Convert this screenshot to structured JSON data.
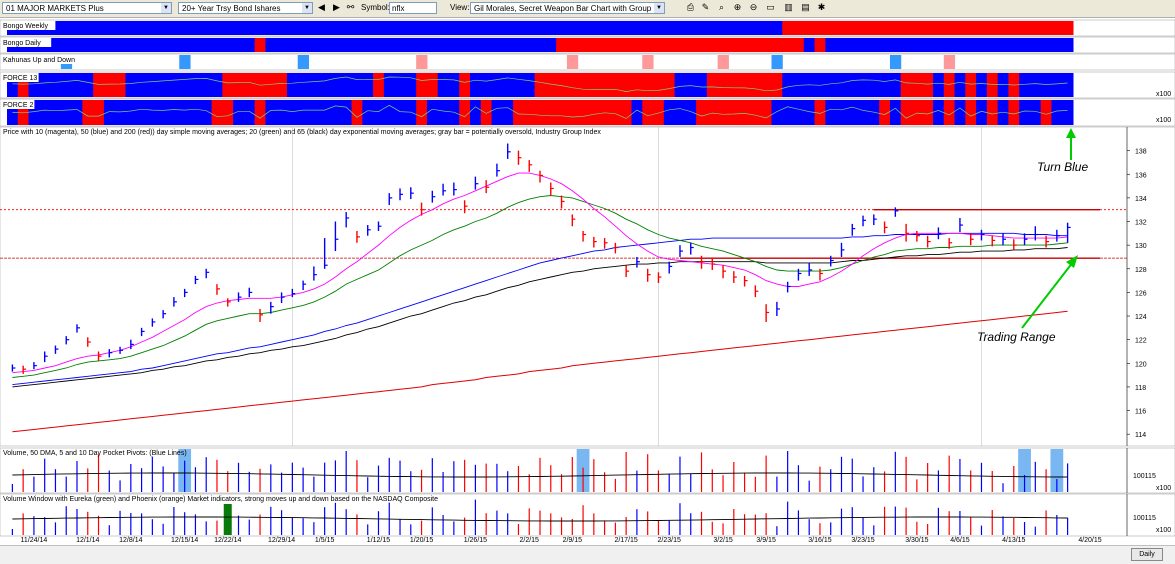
{
  "toolbar": {
    "list_value": "01 MAJOR MARKETS Plus",
    "watch_value": "20+ Year Trsy Bond Ishares",
    "symbol_label": "Symbol:",
    "symbol_value": "nflx",
    "view_label": "View:",
    "view_value": "Gil Morales, Secret Weapon Bar Chart with Group Index",
    "icons": [
      "prev-icon",
      "next-icon",
      "binoculars-icon",
      "print-icon",
      "edit-icon",
      "zoom-icon",
      "zoom-in-icon",
      "zoom-out-icon",
      "pages-icon",
      "chart-icon",
      "export-icon"
    ]
  },
  "panes": {
    "bongo_weekly": "Bongo Weekly",
    "bongo_daily": "Bongo Daily",
    "kahunas": "Kahunas Up and Down",
    "force13": "FORCE 13",
    "force2": "FORCE 2",
    "price": "Price with 10 (magenta), 50 (blue) and 200 (red)) day simple moving averages; 20 (green) and 65 (black) day exponential moving averages; gray bar = potentially oversold, Industry Group Index",
    "volume": "Volume, 50 DMA, 5 and 10 Day Pocket Pivots: (Blue Lines)",
    "volume_window": "Volume Window with Eureka (green) and Phoenix (orange) Market indicators, strong moves up and down based on the NASDAQ Composite",
    "x100": "x100",
    "vol_tick": "100115",
    "daily": "Daily"
  },
  "annotations": {
    "turn_blue": "Turn Blue",
    "trading_range": "Trading Range"
  },
  "colors": {
    "blue": "#0000ff",
    "red": "#ff0000",
    "pink": "#ff9999",
    "light_blue": "#3399ff",
    "magenta": "#ff00ff",
    "green": "#008000",
    "sma200": "#e00000",
    "arrow": "#00cc00"
  },
  "chart_data": {
    "type": "bar",
    "ylim": [
      113,
      140
    ],
    "yticks": [
      114,
      116,
      118,
      120,
      122,
      124,
      126,
      128,
      130,
      132,
      134,
      136,
      138
    ],
    "xtick_labels": [
      "11/24/14",
      "12/1/14",
      "12/8/14",
      "12/15/14",
      "12/22/14",
      "12/29/14",
      "1/5/15",
      "1/12/15",
      "1/20/15",
      "1/26/15",
      "2/2/15",
      "2/9/15",
      "2/17/15",
      "2/23/15",
      "3/2/15",
      "3/9/15",
      "3/16/15",
      "3/23/15",
      "3/30/15",
      "4/6/15",
      "4/13/15",
      "4/20/15"
    ],
    "close": [
      119.6,
      119.5,
      119.8,
      120.6,
      121.2,
      122.0,
      123.0,
      121.8,
      120.6,
      120.9,
      121.1,
      121.6,
      122.7,
      123.5,
      124.2,
      125.2,
      126.0,
      127.1,
      127.7,
      126.3,
      125.2,
      125.6,
      126.0,
      124.1,
      124.8,
      125.6,
      125.9,
      126.7,
      127.5,
      128.3,
      130.5,
      132.3,
      130.7,
      131.3,
      131.6,
      134.0,
      134.3,
      134.4,
      133.0,
      134.1,
      134.6,
      134.7,
      133.3,
      135.2,
      134.9,
      136.3,
      137.9,
      137.4,
      136.8,
      135.9,
      134.8,
      133.7,
      132.2,
      130.9,
      130.3,
      130.2,
      129.8,
      127.8,
      128.6,
      127.5,
      127.3,
      128.2,
      129.5,
      129.8,
      128.6,
      128.4,
      127.8,
      127.3,
      127.0,
      126.1,
      124.3,
      124.6,
      126.5,
      127.6,
      127.9,
      127.6,
      128.7,
      129.6,
      131.4,
      132.1,
      132.2,
      131.5,
      132.9,
      131.0,
      130.8,
      130.3,
      131.0,
      130.2,
      131.7,
      130.5,
      130.9,
      130.4,
      130.5,
      130.0,
      130.5,
      130.9,
      130.3,
      130.8,
      131.5
    ],
    "high": [
      119.9,
      119.8,
      120.1,
      121.0,
      121.5,
      122.3,
      123.3,
      122.2,
      121.0,
      121.2,
      121.4,
      122.0,
      123.0,
      123.8,
      124.5,
      125.6,
      126.3,
      127.4,
      128.0,
      126.7,
      125.5,
      126.0,
      126.4,
      124.6,
      125.2,
      126.0,
      126.3,
      127.0,
      128.2,
      130.6,
      132.0,
      132.8,
      131.2,
      131.7,
      132.0,
      134.4,
      134.8,
      134.9,
      133.6,
      134.6,
      135.2,
      135.3,
      133.8,
      135.8,
      135.5,
      136.9,
      138.6,
      138.0,
      137.2,
      136.3,
      135.3,
      134.2,
      132.6,
      131.2,
      130.7,
      130.6,
      130.2,
      128.3,
      129.0,
      128.0,
      127.7,
      128.6,
      130.0,
      130.2,
      129.1,
      128.9,
      128.3,
      127.8,
      127.4,
      126.6,
      125.0,
      125.2,
      126.9,
      128.0,
      128.5,
      128.0,
      129.1,
      130.2,
      131.8,
      132.5,
      132.6,
      132.0,
      133.2,
      131.8,
      131.2,
      130.8,
      131.5,
      130.6,
      132.3,
      131.0,
      131.3,
      130.8,
      131.0,
      130.5,
      131.0,
      131.6,
      130.8,
      131.3,
      131.9
    ],
    "low": [
      119.3,
      119.1,
      119.5,
      120.1,
      120.8,
      121.6,
      122.6,
      121.4,
      120.2,
      120.5,
      120.8,
      121.2,
      122.3,
      123.1,
      123.8,
      124.8,
      125.6,
      126.7,
      127.2,
      125.8,
      124.8,
      125.2,
      125.6,
      123.5,
      124.2,
      125.1,
      125.6,
      126.2,
      127.0,
      128.0,
      129.5,
      131.5,
      130.2,
      130.8,
      131.2,
      133.4,
      133.8,
      133.9,
      132.5,
      133.6,
      134.2,
      134.2,
      132.7,
      134.7,
      134.4,
      135.8,
      137.3,
      136.8,
      136.2,
      135.3,
      134.2,
      133.1,
      131.6,
      130.3,
      129.8,
      129.7,
      129.3,
      127.3,
      128.1,
      126.9,
      126.8,
      127.6,
      129.0,
      129.2,
      128.0,
      127.9,
      127.2,
      126.8,
      126.5,
      125.6,
      123.5,
      124.0,
      126.0,
      127.0,
      127.4,
      127.0,
      128.2,
      129.0,
      130.8,
      131.6,
      131.7,
      131.0,
      132.4,
      130.3,
      130.3,
      129.8,
      130.5,
      129.7,
      131.1,
      130.0,
      130.4,
      129.9,
      130.0,
      129.6,
      130.0,
      130.4,
      129.8,
      130.3,
      130.2
    ],
    "sma10": [
      119.2,
      119.3,
      119.4,
      119.6,
      119.8,
      120.1,
      120.4,
      120.6,
      120.7,
      120.9,
      121.1,
      121.4,
      121.8,
      122.2,
      122.7,
      123.2,
      123.7,
      124.3,
      124.8,
      125.1,
      125.3,
      125.4,
      125.5,
      125.5,
      125.5,
      125.6,
      125.8,
      126.0,
      126.3,
      126.7,
      127.3,
      128.0,
      128.6,
      129.3,
      130.0,
      130.8,
      131.5,
      132.1,
      132.6,
      133.0,
      133.5,
      133.9,
      134.2,
      134.6,
      135.0,
      135.4,
      135.8,
      136.1,
      136.1,
      135.9,
      135.6,
      135.2,
      134.6,
      133.9,
      133.1,
      132.4,
      131.6,
      130.8,
      130.1,
      129.5,
      129.0,
      128.8,
      128.7,
      128.6,
      128.5,
      128.4,
      128.3,
      128.1,
      127.9,
      127.5,
      127.0,
      126.7,
      126.5,
      126.5,
      126.7,
      126.9,
      127.3,
      127.8,
      128.4,
      129.1,
      129.7,
      130.2,
      130.6,
      130.9,
      131.0,
      131.0,
      131.0,
      131.0,
      131.0,
      130.9,
      130.9,
      130.8,
      130.7,
      130.6,
      130.6,
      130.6,
      130.6,
      130.6,
      130.7
    ],
    "ema20": [
      118.8,
      118.9,
      119.0,
      119.2,
      119.4,
      119.6,
      119.9,
      120.1,
      120.2,
      120.3,
      120.4,
      120.6,
      120.9,
      121.2,
      121.5,
      121.9,
      122.3,
      122.8,
      123.3,
      123.6,
      123.8,
      124.0,
      124.2,
      124.2,
      124.3,
      124.5,
      124.7,
      124.9,
      125.2,
      125.6,
      126.1,
      126.7,
      127.1,
      127.5,
      127.9,
      128.5,
      129.1,
      129.6,
      130.0,
      130.4,
      130.9,
      131.3,
      131.6,
      132.0,
      132.3,
      132.7,
      133.2,
      133.6,
      133.9,
      134.1,
      134.2,
      134.1,
      134.0,
      133.7,
      133.4,
      133.1,
      132.7,
      132.2,
      131.8,
      131.3,
      130.9,
      130.6,
      130.4,
      130.2,
      129.9,
      129.7,
      129.5,
      129.2,
      128.9,
      128.6,
      128.2,
      127.9,
      127.8,
      127.8,
      127.8,
      127.8,
      127.9,
      128.1,
      128.4,
      128.7,
      129.0,
      129.2,
      129.5,
      129.6,
      129.7,
      129.7,
      129.8,
      129.8,
      129.9,
      129.9,
      129.9,
      130.0,
      130.0,
      130.0,
      130.0,
      130.0,
      130.0,
      130.1,
      130.2
    ],
    "sma50": [
      118.2,
      118.3,
      118.4,
      118.5,
      118.6,
      118.7,
      118.8,
      118.9,
      119.0,
      119.1,
      119.2,
      119.3,
      119.5,
      119.6,
      119.8,
      120.0,
      120.2,
      120.4,
      120.6,
      120.8,
      120.9,
      121.1,
      121.3,
      121.4,
      121.6,
      121.8,
      122.0,
      122.2,
      122.4,
      122.7,
      122.9,
      123.2,
      123.4,
      123.7,
      124.0,
      124.3,
      124.6,
      124.9,
      125.2,
      125.5,
      125.8,
      126.1,
      126.4,
      126.7,
      127.0,
      127.3,
      127.6,
      127.9,
      128.2,
      128.5,
      128.7,
      128.9,
      129.1,
      129.3,
      129.5,
      129.6,
      129.8,
      129.9,
      130.0,
      130.1,
      130.2,
      130.3,
      130.4,
      130.5,
      130.5,
      130.6,
      130.6,
      130.6,
      130.6,
      130.6,
      130.6,
      130.6,
      130.6,
      130.6,
      130.6,
      130.6,
      130.6,
      130.6,
      130.7,
      130.7,
      130.8,
      130.8,
      130.9,
      130.9,
      130.9,
      130.9,
      130.9,
      131.0,
      131.0,
      131.0,
      131.0,
      131.0,
      131.0,
      131.0,
      130.9,
      130.9,
      130.9,
      130.8,
      130.8
    ],
    "ema65": [
      118.0,
      118.1,
      118.2,
      118.3,
      118.4,
      118.5,
      118.6,
      118.7,
      118.8,
      118.9,
      119.0,
      119.1,
      119.2,
      119.4,
      119.5,
      119.7,
      119.8,
      120.0,
      120.2,
      120.3,
      120.5,
      120.6,
      120.8,
      120.9,
      121.1,
      121.2,
      121.4,
      121.5,
      121.7,
      121.9,
      122.1,
      122.4,
      122.6,
      122.9,
      123.1,
      123.4,
      123.7,
      124.0,
      124.2,
      124.5,
      124.8,
      125.1,
      125.3,
      125.6,
      125.8,
      126.1,
      126.4,
      126.6,
      126.9,
      127.1,
      127.3,
      127.5,
      127.7,
      127.8,
      128.0,
      128.1,
      128.2,
      128.3,
      128.4,
      128.4,
      128.5,
      128.5,
      128.6,
      128.6,
      128.6,
      128.6,
      128.6,
      128.6,
      128.6,
      128.6,
      128.5,
      128.5,
      128.5,
      128.5,
      128.5,
      128.5,
      128.5,
      128.6,
      128.7,
      128.7,
      128.8,
      128.9,
      129.0,
      129.1,
      129.1,
      129.2,
      129.2,
      129.3,
      129.4,
      129.4,
      129.5,
      129.5,
      129.5,
      129.6,
      129.6,
      129.7,
      129.7,
      129.7,
      129.8
    ],
    "sma200": [
      114.2,
      114.3,
      114.4,
      114.5,
      114.6,
      114.7,
      114.8,
      114.9,
      115.0,
      115.1,
      115.2,
      115.3,
      115.4,
      115.5,
      115.6,
      115.7,
      115.8,
      115.9,
      116.0,
      116.1,
      116.2,
      116.3,
      116.4,
      116.5,
      116.6,
      116.7,
      116.8,
      116.9,
      117.0,
      117.1,
      117.2,
      117.3,
      117.4,
      117.5,
      117.6,
      117.7,
      117.8,
      117.9,
      118.0,
      118.2,
      118.3,
      118.4,
      118.5,
      118.6,
      118.8,
      118.9,
      119.0,
      119.1,
      119.3,
      119.4,
      119.5,
      119.6,
      119.8,
      119.9,
      120.0,
      120.1,
      120.2,
      120.3,
      120.4,
      120.5,
      120.6,
      120.7,
      120.8,
      120.9,
      121.0,
      121.1,
      121.2,
      121.3,
      121.4,
      121.5,
      121.6,
      121.7,
      121.8,
      121.9,
      122.0,
      122.1,
      122.2,
      122.3,
      122.4,
      122.5,
      122.6,
      122.7,
      122.8,
      122.9,
      123.0,
      123.1,
      123.2,
      123.3,
      123.4,
      123.5,
      123.6,
      123.7,
      123.8,
      123.9,
      124.0,
      124.1,
      124.2,
      124.3,
      124.4
    ],
    "resistance": 133.0,
    "support": 128.9
  }
}
